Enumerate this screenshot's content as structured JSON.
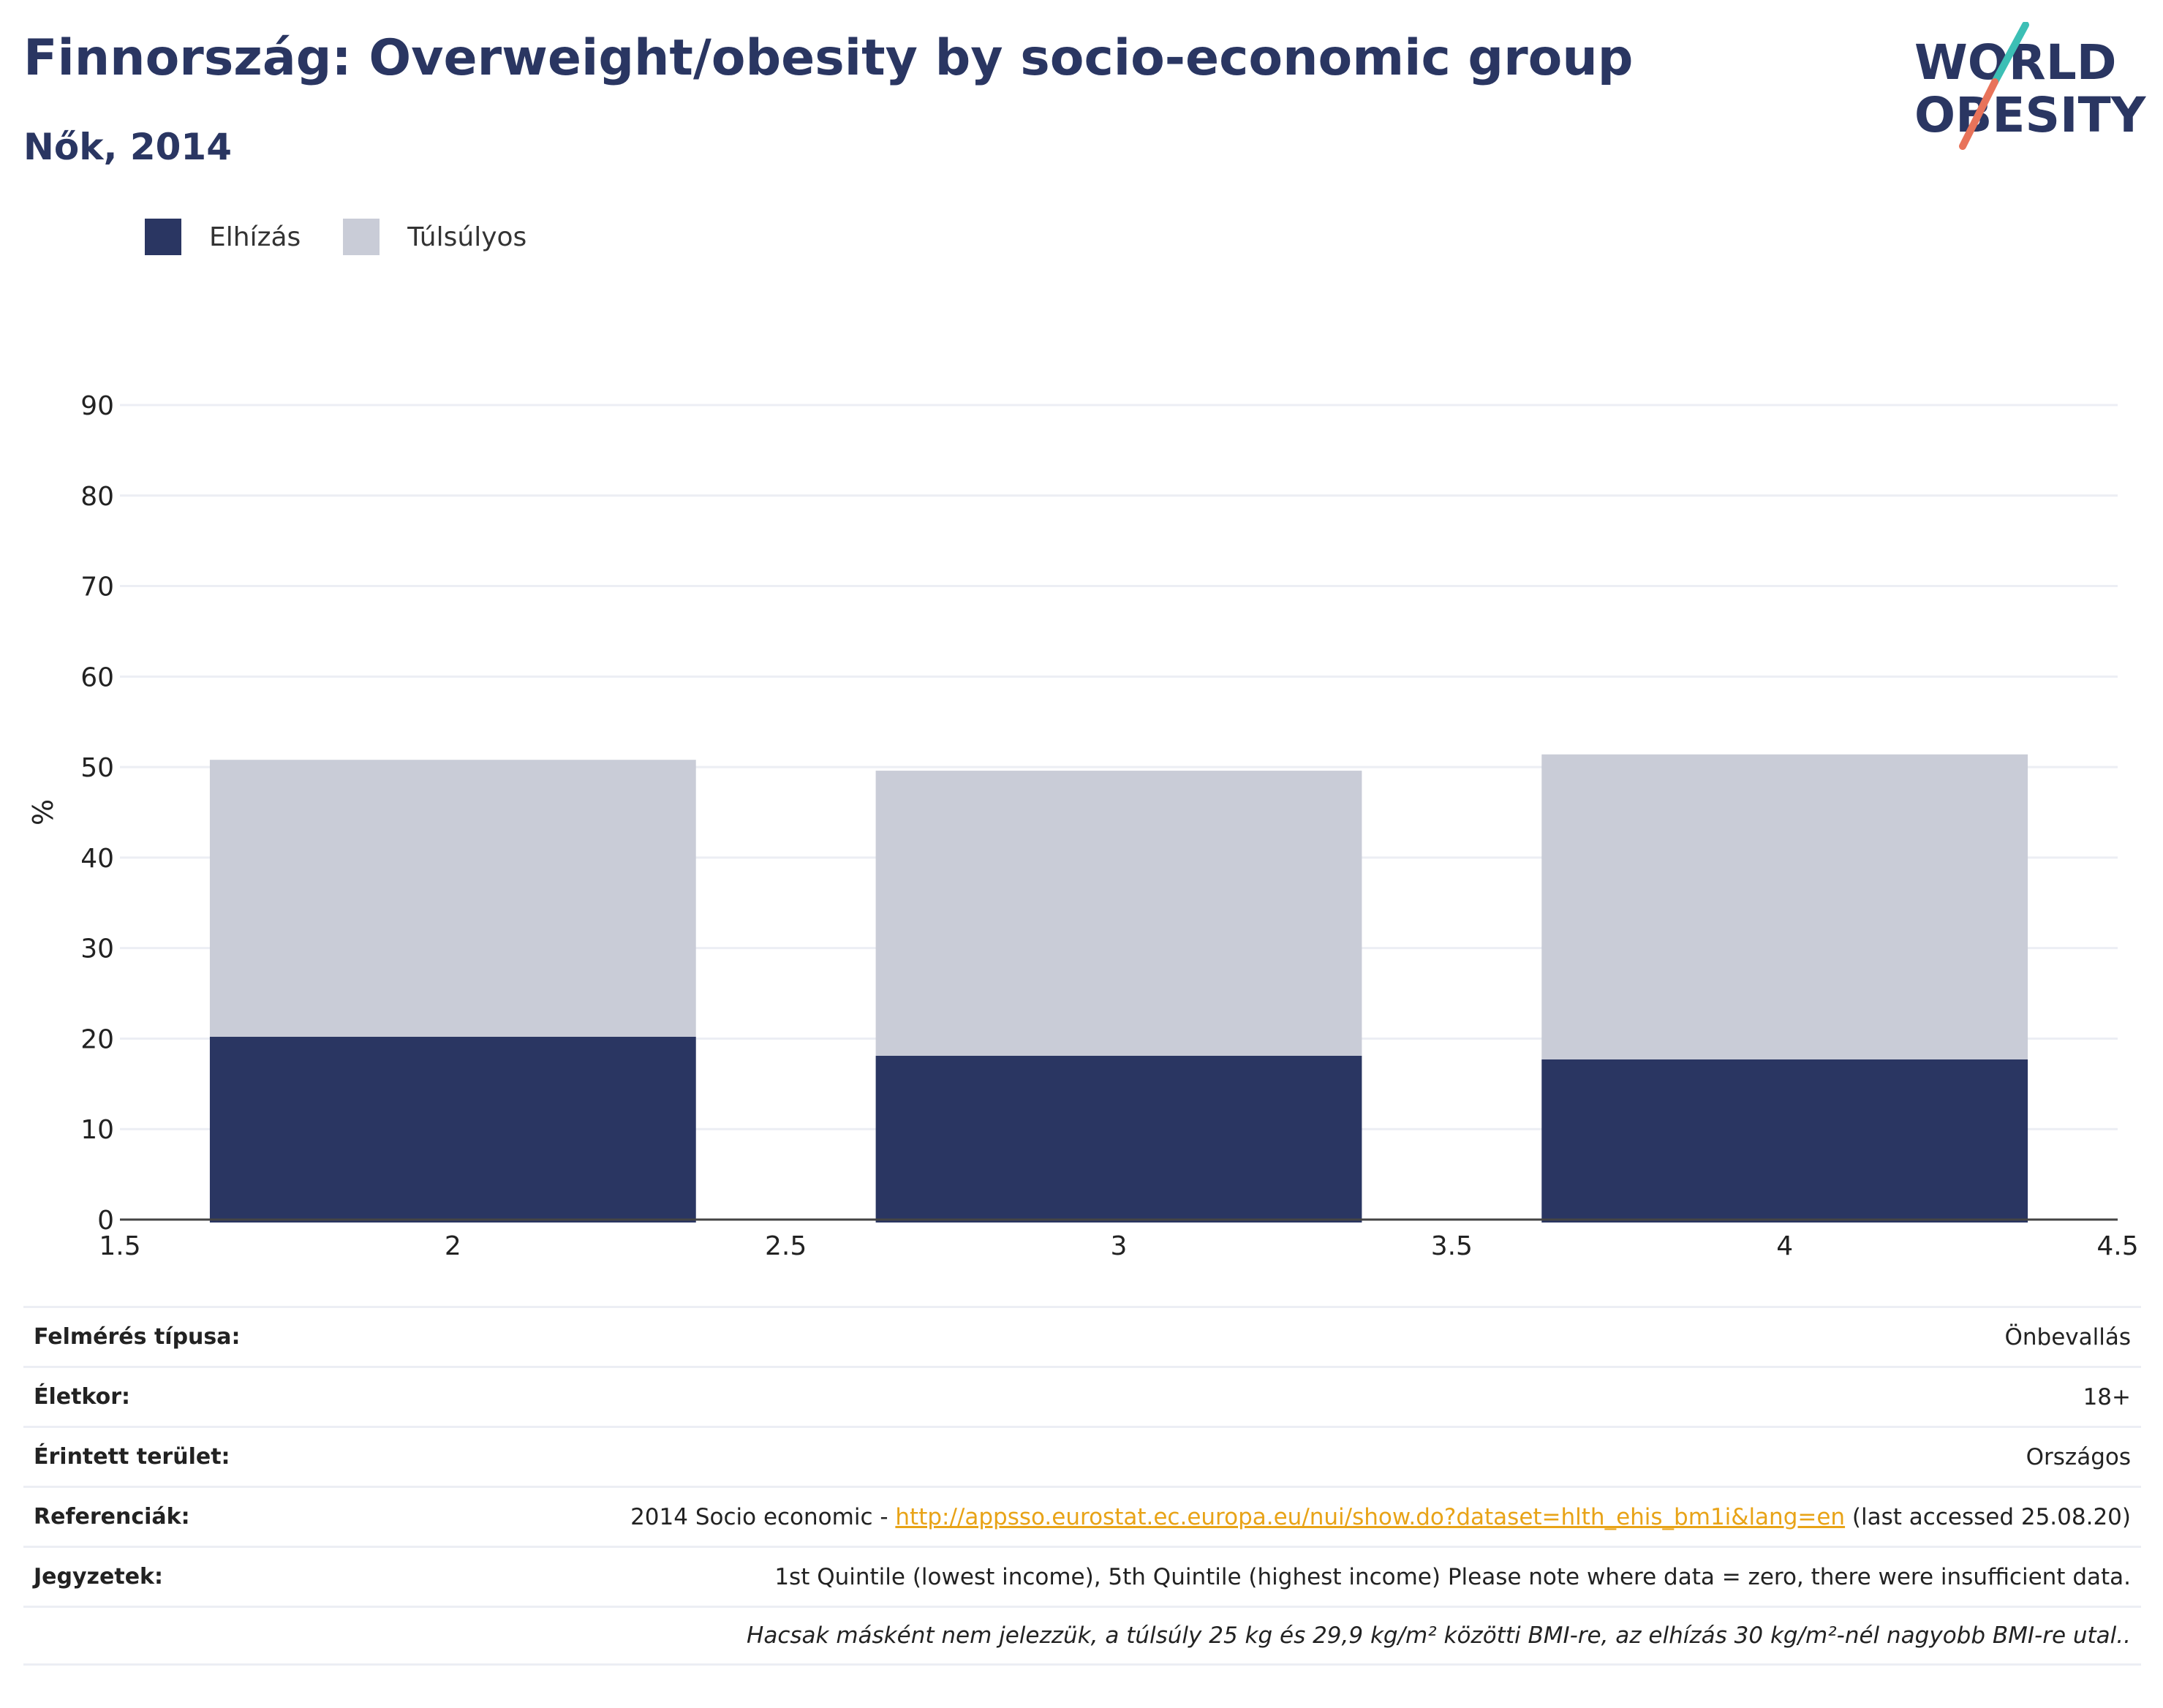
{
  "header": {
    "title": "Finnország: Overweight/obesity by socio-economic group",
    "subtitle": "Nők, 2014"
  },
  "logo": {
    "line1": "WORLD",
    "line2": "OBESITY",
    "colors": {
      "text": "#2a3662",
      "slash_top": "#3cbfb5",
      "slash_bottom": "#e8735a"
    }
  },
  "colors": {
    "obesity": "#2a3662",
    "overweight": "#c9ccd7",
    "grid": "#eceef4",
    "axis": "#444444",
    "link": "#e8a317"
  },
  "chart_data": {
    "type": "bar",
    "stacked": true,
    "x": [
      2,
      3,
      4
    ],
    "series": [
      {
        "name": "Elhízás",
        "color": "#2a3662",
        "values": [
          20.2,
          18.1,
          17.7
        ]
      },
      {
        "name": "Túlsúlyos",
        "color": "#c9ccd7",
        "values": [
          30.6,
          31.5,
          33.7
        ]
      }
    ],
    "xlim": [
      1.5,
      4.5
    ],
    "xticks": [
      1.5,
      2,
      2.5,
      3,
      3.5,
      4,
      4.5
    ],
    "xtick_labels": [
      "1.5",
      "2",
      "2.5",
      "3",
      "3.5",
      "4",
      "4.5"
    ],
    "ylim": [
      0,
      90
    ],
    "yticks": [
      0,
      10,
      20,
      30,
      40,
      50,
      60,
      70,
      80,
      90
    ],
    "ylabel": "%",
    "xlabel": "",
    "bar_width": 0.73,
    "grid": true,
    "legend_position": "top-left"
  },
  "info": {
    "rows": [
      {
        "label": "Felmérés típusa:",
        "value": "Önbevallás"
      },
      {
        "label": "Életkor:",
        "value": "18+"
      },
      {
        "label": "Érintett terület:",
        "value": "Országos"
      },
      {
        "label": "Referenciák:",
        "value_prefix": "2014 Socio economic - ",
        "link": "http://appsso.eurostat.ec.europa.eu/nui/show.do?dataset=hlth_ehis_bm1i&lang=en",
        "value_suffix": " (last accessed 25.08.20)"
      },
      {
        "label": "Jegyzetek:",
        "value": "1st Quintile (lowest income), 5th Quintile (highest income) Please note where data = zero, there were insufficient data."
      }
    ],
    "footnote": "Hacsak másként nem jelezzük, a túlsúly 25 kg és 29,9 kg/m² közötti BMI-re, az elhízás 30 kg/m²-nél nagyobb BMI-re utal.."
  }
}
